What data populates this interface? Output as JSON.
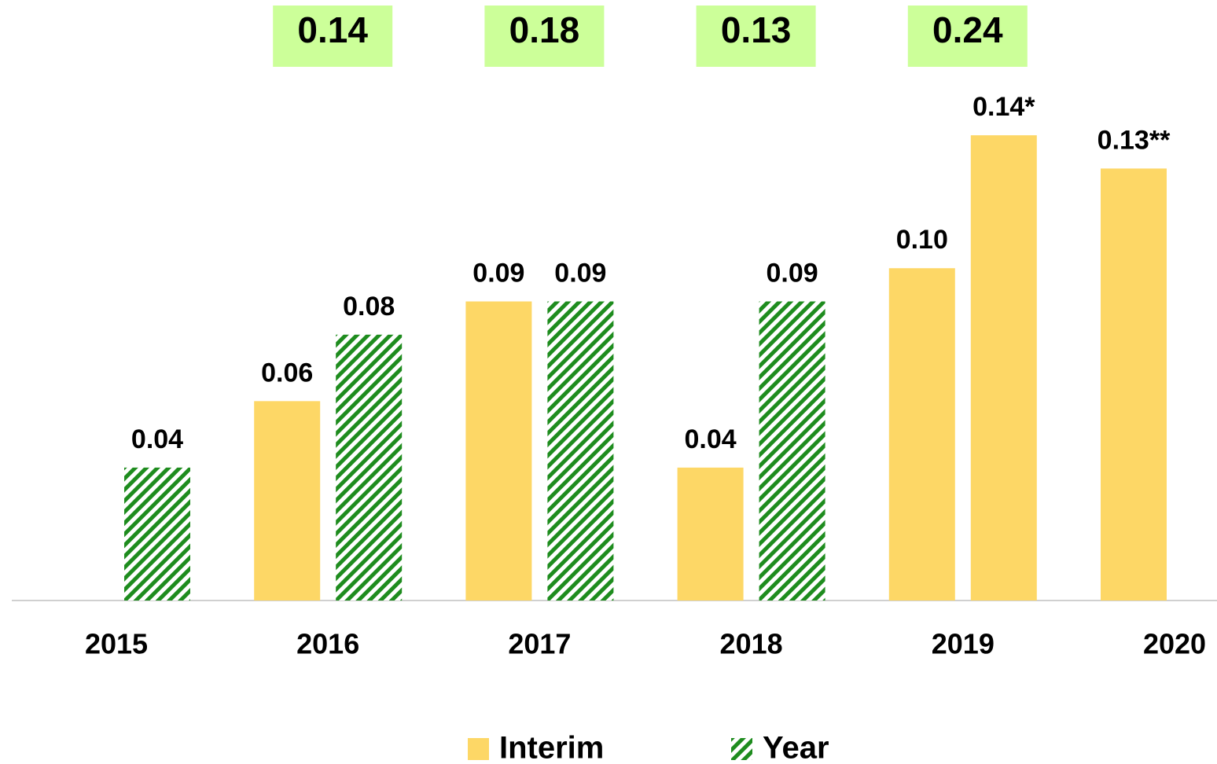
{
  "chart_data": {
    "type": "bar",
    "categories": [
      "2015",
      "2016",
      "2017",
      "2018",
      "2019",
      "2020"
    ],
    "series": [
      {
        "name": "Interim",
        "color": "#fdd766",
        "values": [
          null,
          0.06,
          0.09,
          0.04,
          0.1,
          0.13
        ],
        "value_labels": [
          null,
          "0.06",
          "0.09",
          "0.04",
          "0.10",
          "0.13**"
        ]
      },
      {
        "name": "Year",
        "color": "#1e8c1e",
        "pattern": "hatch",
        "values": [
          0.04,
          0.08,
          0.09,
          0.09,
          0.14,
          null
        ],
        "value_labels": [
          "0.04",
          "0.08",
          "0.09",
          "0.09",
          "0.14*",
          null
        ],
        "point_colors": [
          null,
          null,
          null,
          null,
          "#fdd766",
          null
        ]
      }
    ],
    "totals": {
      "color": "#ccff99",
      "values": [
        null,
        0.14,
        0.18,
        0.13,
        0.24,
        null
      ],
      "value_labels": [
        null,
        "0.14",
        "0.18",
        "0.13",
        "0.24",
        null
      ]
    },
    "ylim": [
      0,
      0.18
    ]
  }
}
